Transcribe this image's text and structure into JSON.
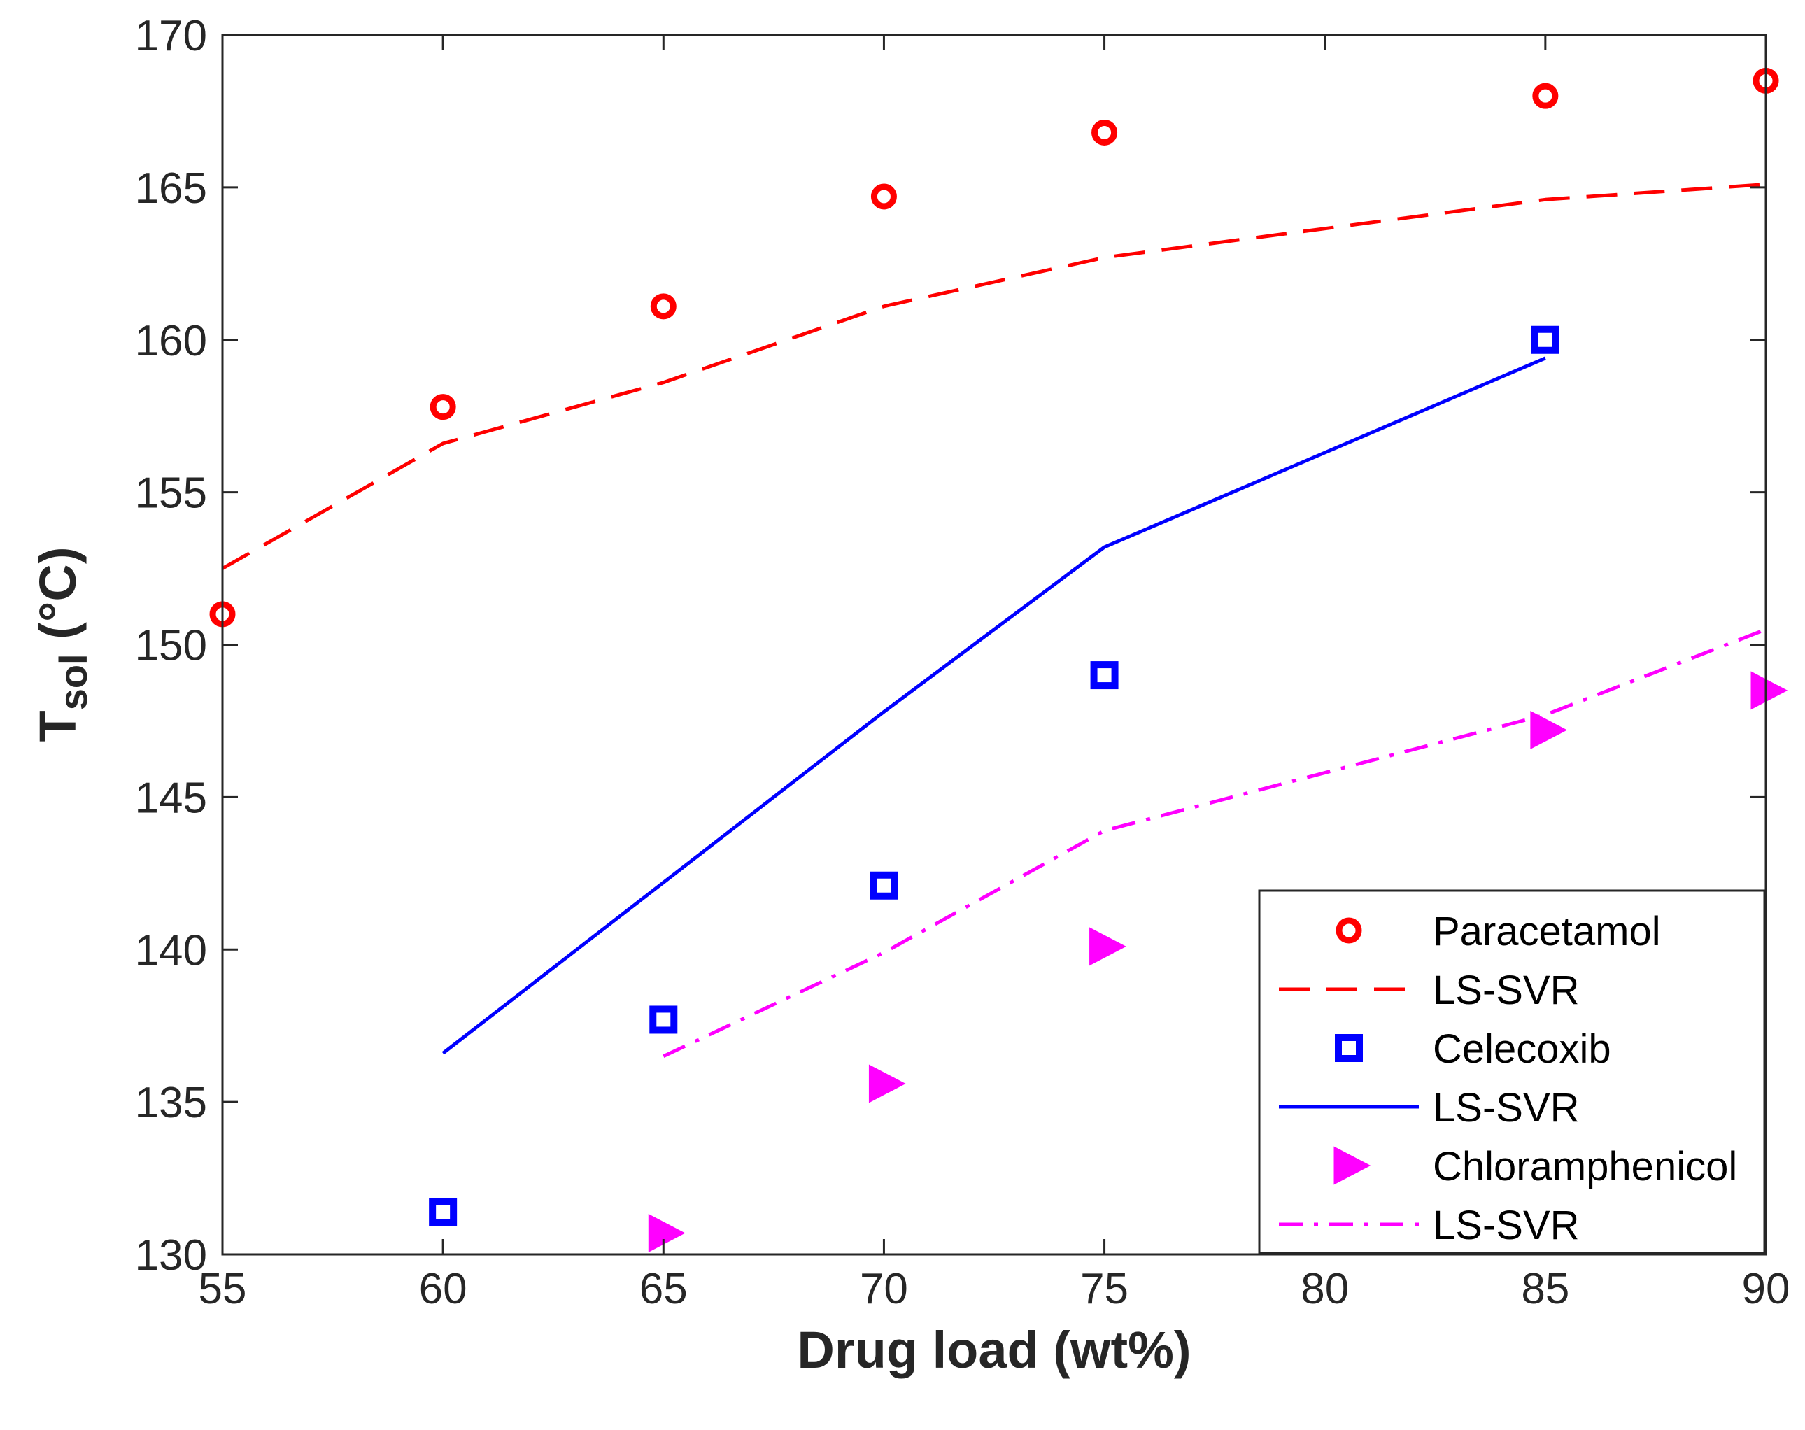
{
  "chart_data": {
    "type": "scatter",
    "title": "",
    "xlabel": "Drug load (wt%)",
    "ylabel_main": "T",
    "ylabel_sub": "sol",
    "ylabel_unit": " (°C)",
    "xlim": [
      55,
      90
    ],
    "ylim": [
      130,
      170
    ],
    "xticks": [
      55,
      60,
      65,
      70,
      75,
      80,
      85,
      90
    ],
    "yticks": [
      130,
      135,
      140,
      145,
      150,
      155,
      160,
      165,
      170
    ],
    "xtick_labels": [
      "55",
      "60",
      "65",
      "70",
      "75",
      "80",
      "85",
      "90"
    ],
    "ytick_labels": [
      "130",
      "135",
      "140",
      "145",
      "150",
      "155",
      "160",
      "165",
      "170"
    ],
    "legend_position": "bottom-right",
    "series": [
      {
        "name": "Paracetamol",
        "kind": "marker",
        "marker": "circle",
        "color": "#ff0000",
        "x": [
          55,
          60,
          65,
          70,
          75,
          85,
          90
        ],
        "y": [
          151.0,
          157.8,
          161.1,
          164.7,
          166.8,
          168.0,
          168.5
        ]
      },
      {
        "name": "LS-SVR",
        "kind": "line",
        "dash": "dashed",
        "color": "#ff0000",
        "x": [
          55,
          60,
          65,
          70,
          75,
          85,
          90
        ],
        "y": [
          152.5,
          156.6,
          158.6,
          161.1,
          162.7,
          164.6,
          165.1
        ]
      },
      {
        "name": "Celecoxib",
        "kind": "marker",
        "marker": "square",
        "color": "#0000ff",
        "x": [
          60,
          65,
          70,
          75,
          85
        ],
        "y": [
          131.4,
          137.7,
          142.1,
          149.0,
          160.0
        ]
      },
      {
        "name": "LS-SVR",
        "kind": "line",
        "dash": "solid",
        "color": "#0000ff",
        "x": [
          60,
          65,
          70,
          75,
          85
        ],
        "y": [
          136.6,
          142.2,
          147.8,
          153.2,
          159.4
        ]
      },
      {
        "name": "Chloramphenicol",
        "kind": "marker",
        "marker": "triangle-right",
        "color": "#ff00ff",
        "x": [
          65,
          70,
          75,
          85,
          90
        ],
        "y": [
          130.7,
          135.6,
          140.1,
          147.2,
          148.5
        ]
      },
      {
        "name": "LS-SVR",
        "kind": "line",
        "dash": "dashdot",
        "color": "#ff00ff",
        "x": [
          65,
          70,
          75,
          85,
          90
        ],
        "y": [
          136.5,
          139.9,
          143.9,
          147.7,
          150.5
        ]
      }
    ]
  }
}
